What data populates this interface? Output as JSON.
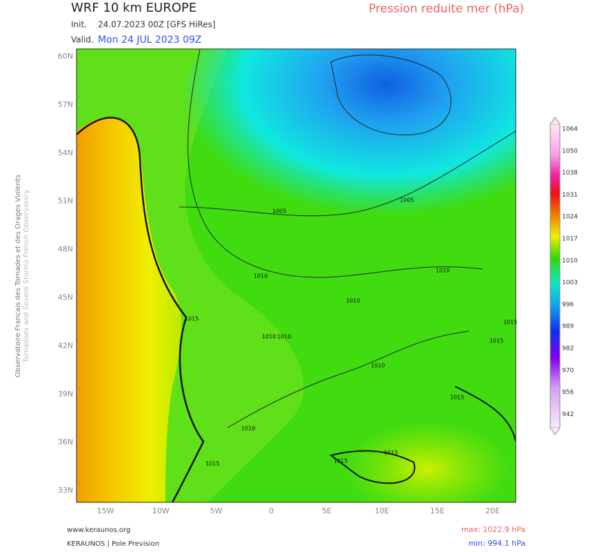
{
  "header": {
    "model": "WRF 10 km EUROPE",
    "init_label": "Init.",
    "init": "24.07.2023 00Z [GFS HiRes]",
    "valid_label": "Valid.",
    "valid": "Mon 24 JUL 2023 09Z",
    "parameter": "Pression reduite mer (hPa)"
  },
  "side_credit": [
    "Observatoire Francais des Tornades et des Orages Violents",
    "Tornadoes and Severe Storms French Observatory"
  ],
  "map": {
    "lat_labels": [
      "60N",
      "57N",
      "54N",
      "51N",
      "48N",
      "45N",
      "42N",
      "39N",
      "36N",
      "33N"
    ],
    "lon_labels": [
      "15W",
      "10W",
      "5W",
      "0",
      "5E",
      "10E",
      "15E",
      "20E"
    ],
    "contour_labels": [
      "1005",
      "1005",
      "1010",
      "1010",
      "1010",
      "1015",
      "1010",
      "1010",
      "1010",
      "1015",
      "1010",
      "1015",
      "1015",
      "1015",
      "1015",
      "1015"
    ]
  },
  "colorbar": {
    "labels": [
      "1064",
      "1050",
      "1038",
      "1031",
      "1024",
      "1017",
      "1010",
      "1003",
      "996",
      "989",
      "982",
      "970",
      "956",
      "942"
    ]
  },
  "footer": {
    "website": "www.keraunos.org",
    "org": "KERAUNOS | Pole Prevision",
    "max": "max: 1022.9 hPa",
    "min": "min: 994.1 hPa"
  }
}
